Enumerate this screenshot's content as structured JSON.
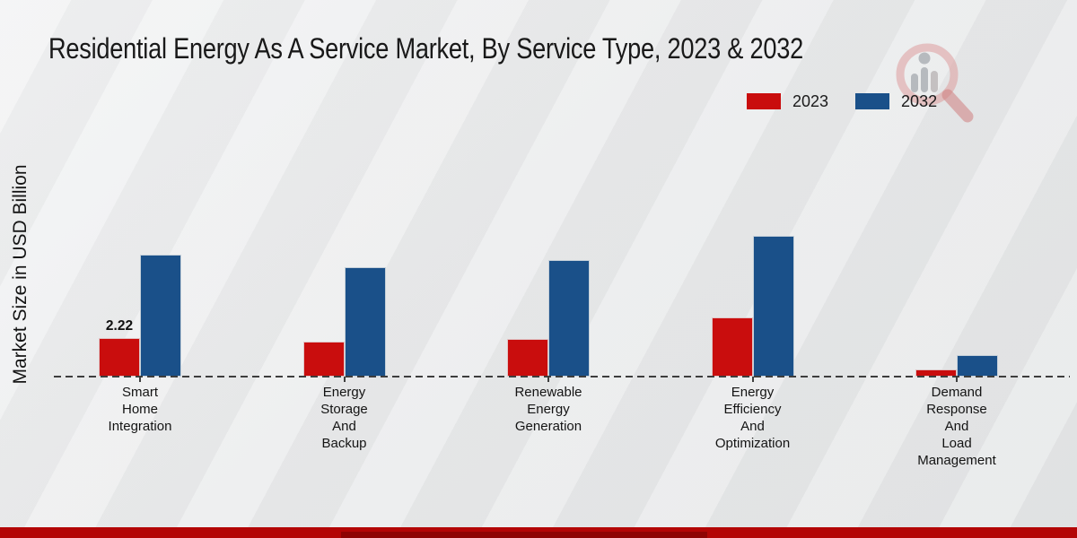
{
  "header": {
    "title": "Residential Energy As A Service Market, By Service Type, 2023 & 2032"
  },
  "watermark": {
    "icon": "magnifier-bar-chart-logo",
    "circle_color": "#dd9c9c",
    "bars_color": "#a9adb2",
    "handle_color": "#d08080"
  },
  "footer": {
    "stripe_color": "#b30606",
    "accent_color": "#8e0404"
  },
  "axis": {
    "baseline_style": "dashed",
    "baseline_color": "#3d3d3d"
  },
  "chart_data": {
    "type": "bar",
    "title": "Residential Energy As A Service Market, By Service Type, 2023 & 2032",
    "xlabel": "",
    "ylabel": "Market Size in USD Billion",
    "ylim": [
      0,
      9
    ],
    "grid": false,
    "legend_position": "top-right",
    "categories": [
      {
        "name": "Smart Home Integration",
        "lines": [
          "Smart",
          "Home",
          "Integration"
        ]
      },
      {
        "name": "Energy Storage And Backup",
        "lines": [
          "Energy",
          "Storage",
          "And",
          "Backup"
        ]
      },
      {
        "name": "Renewable Energy Generation",
        "lines": [
          "Renewable",
          "Energy",
          "Generation"
        ]
      },
      {
        "name": "Energy Efficiency And Optimization",
        "lines": [
          "Energy",
          "Efficiency",
          "And",
          "Optimization"
        ]
      },
      {
        "name": "Demand Response And Load Management",
        "lines": [
          "Demand",
          "Response",
          "And",
          "Load",
          "Management"
        ]
      }
    ],
    "series": [
      {
        "name": "2023",
        "color": "#c90d0d",
        "values": [
          2.22,
          2.0,
          2.15,
          3.4,
          0.4
        ]
      },
      {
        "name": "2032",
        "color": "#1a5089",
        "values": [
          7.0,
          6.3,
          6.7,
          8.1,
          1.25
        ]
      }
    ],
    "value_labels": [
      {
        "series_index": 0,
        "category_index": 0,
        "text": "2.22"
      }
    ]
  }
}
